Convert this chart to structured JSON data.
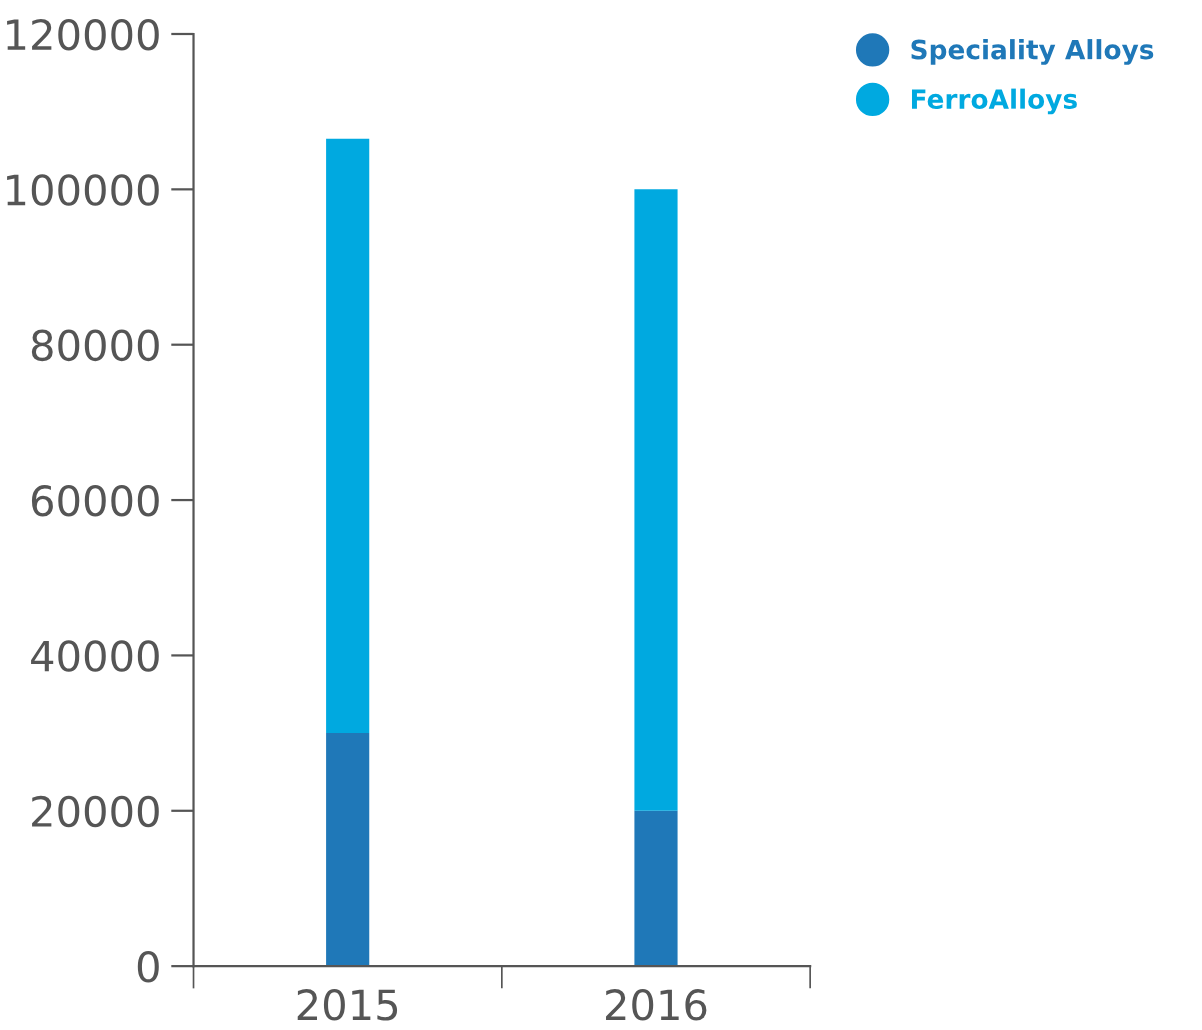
{
  "chart_data": {
    "type": "bar",
    "stacked": true,
    "categories": [
      "2015",
      "2016"
    ],
    "series": [
      {
        "name": "Speciality Alloys",
        "color": "#1f78b8",
        "values": [
          30000,
          20000
        ]
      },
      {
        "name": "FerroAlloys",
        "color": "#00a9e0",
        "values": [
          76500,
          80000
        ]
      }
    ],
    "ylim": [
      0,
      120000
    ],
    "yticks": [
      0,
      20000,
      40000,
      60000,
      80000,
      100000,
      120000
    ],
    "grid": false,
    "legend": "top right",
    "marker": "circle"
  }
}
